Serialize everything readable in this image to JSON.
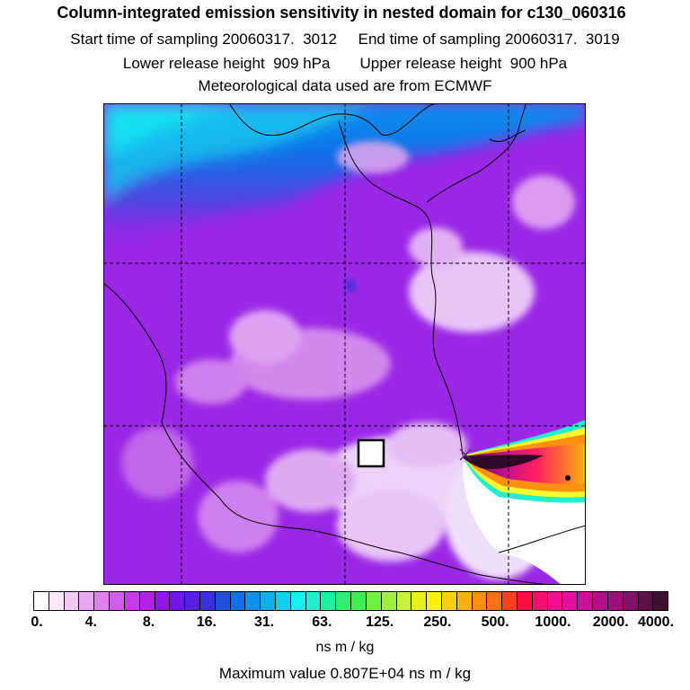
{
  "header": {
    "title": "Column-integrated emission sensitivity in nested domain for c130_060316",
    "line_time": "Start time of sampling 20060317.  3012     End time of sampling 20060317.  3019",
    "line_height": "Lower release height  909 hPa       Upper release height  900 hPa",
    "line_met": "Meteorological data used are from ECMWF"
  },
  "legend": {
    "ticks": [
      "0.",
      "4.",
      "8.",
      "16.",
      "31.",
      "63.",
      "125.",
      "250.",
      "500.",
      "1000.",
      "2000.",
      "4000."
    ],
    "colors": [
      "#ffffff",
      "#fbe8fb",
      "#f4c9f6",
      "#eaa8f2",
      "#df80ee",
      "#d25cec",
      "#c43ce8",
      "#b022e6",
      "#9218e6",
      "#7218e4",
      "#5820e0",
      "#3c30dc",
      "#2050d8",
      "#1070e6",
      "#1090ee",
      "#10b0f0",
      "#10d0f0",
      "#18f0f0",
      "#20f0d0",
      "#20f0a0",
      "#30f070",
      "#40f050",
      "#70f040",
      "#a0f040",
      "#c8f040",
      "#e8f020",
      "#fff010",
      "#ffd010",
      "#ffb010",
      "#ff9010",
      "#ff7010",
      "#ff4020",
      "#ff1040",
      "#f81070",
      "#f01090",
      "#e010a0",
      "#c81098",
      "#b01088",
      "#981078",
      "#801068",
      "#601048",
      "#401030"
    ],
    "units": "ns m / kg",
    "max_value": "Maximum value  0.807E+04 ns m / kg"
  },
  "map": {
    "background_color": "#9a28e6",
    "symbols": [
      "release-x-marker",
      "receptor-box",
      "point-marker"
    ]
  }
}
